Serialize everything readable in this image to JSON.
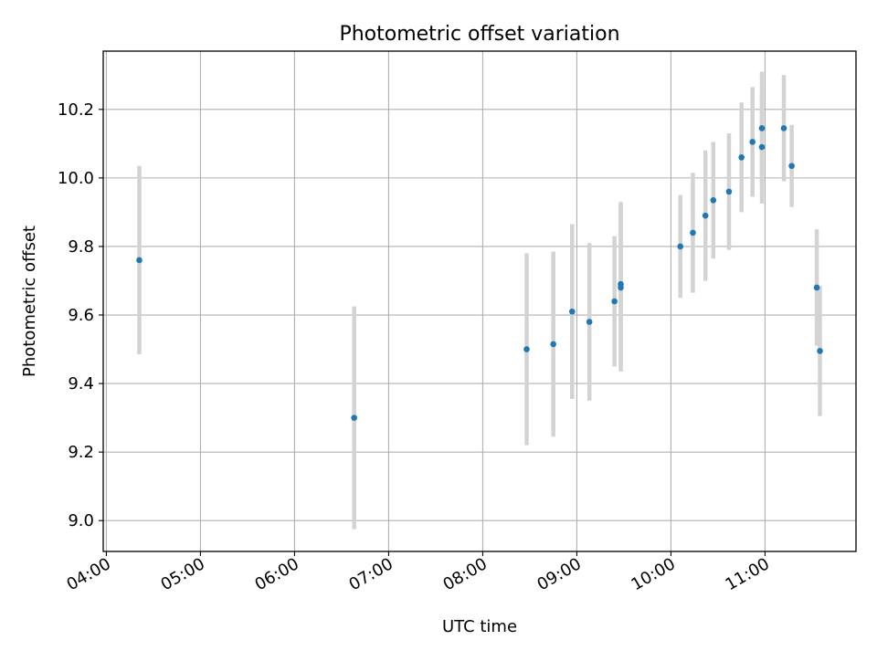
{
  "chart_data": {
    "type": "scatter",
    "title": "Photometric offset variation",
    "xlabel": "UTC time",
    "ylabel": "Photometric offset",
    "grid": true,
    "xlim": [
      "03:58",
      "11:58"
    ],
    "ylim": [
      8.91,
      10.37
    ],
    "x_ticks": [
      "04:00",
      "05:00",
      "06:00",
      "07:00",
      "08:00",
      "09:00",
      "10:00",
      "11:00"
    ],
    "y_ticks": [
      "9.0",
      "9.2",
      "9.4",
      "9.6",
      "9.8",
      "10.0",
      "10.2"
    ],
    "colors": {
      "point": "#1f77b4",
      "errorbar": "#d3d3d3",
      "grid": "#b0b0b0"
    },
    "points": [
      {
        "time": "04:21",
        "y": 9.76,
        "err": 0.275
      },
      {
        "time": "06:38",
        "y": 9.3,
        "err": 0.325
      },
      {
        "time": "08:28",
        "y": 9.5,
        "err": 0.28
      },
      {
        "time": "08:45",
        "y": 9.515,
        "err": 0.27
      },
      {
        "time": "08:57",
        "y": 9.61,
        "err": 0.255
      },
      {
        "time": "09:08",
        "y": 9.58,
        "err": 0.23
      },
      {
        "time": "09:24",
        "y": 9.64,
        "err": 0.19
      },
      {
        "time": "09:28",
        "y": 9.68,
        "err": 0.245
      },
      {
        "time": "09:28",
        "y": 9.69,
        "err": 0.24
      },
      {
        "time": "10:06",
        "y": 9.8,
        "err": 0.15
      },
      {
        "time": "10:14",
        "y": 9.84,
        "err": 0.175
      },
      {
        "time": "10:22",
        "y": 9.89,
        "err": 0.19
      },
      {
        "time": "10:27",
        "y": 9.935,
        "err": 0.17
      },
      {
        "time": "10:37",
        "y": 9.96,
        "err": 0.17
      },
      {
        "time": "10:45",
        "y": 10.06,
        "err": 0.16
      },
      {
        "time": "10:52",
        "y": 10.105,
        "err": 0.16
      },
      {
        "time": "10:58",
        "y": 10.145,
        "err": 0.165
      },
      {
        "time": "10:58",
        "y": 10.09,
        "err": 0.165
      },
      {
        "time": "11:12",
        "y": 10.145,
        "err": 0.155
      },
      {
        "time": "11:17",
        "y": 10.035,
        "err": 0.12
      },
      {
        "time": "11:33",
        "y": 9.68,
        "err": 0.17
      },
      {
        "time": "11:35",
        "y": 9.495,
        "err": 0.19
      }
    ]
  }
}
